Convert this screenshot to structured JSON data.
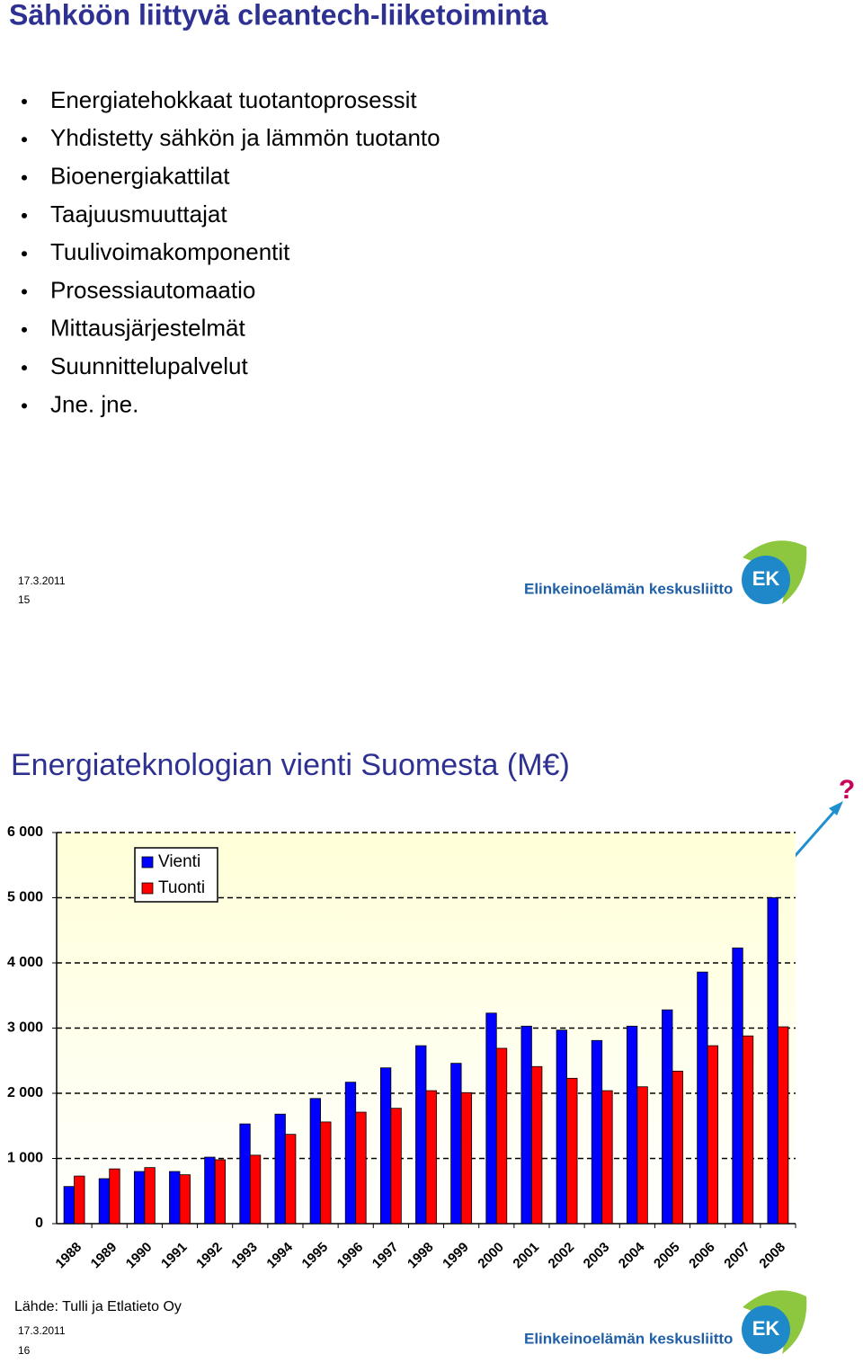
{
  "slide1": {
    "title": "Sähköön liittyvä cleantech-liiketoiminta",
    "bullets": [
      "Energiatehokkaat tuotantoprosessit",
      "Yhdistetty sähkön ja lämmön tuotanto",
      "Bioenergiakattilat",
      "Taajuusmuuttajat",
      "Tuulivoimakomponentit",
      "Prosessiautomaatio",
      "Mittausjärjestelmät",
      "Suunnittelupalvelut",
      "Jne. jne."
    ],
    "date": "17.3.2011",
    "page": "15",
    "logo_text": "Elinkeinoelämän keskusliitto",
    "logo_mark": "EK"
  },
  "slide2": {
    "title": "Energiateknologian vienti Suomesta (M€)",
    "annotation": "?",
    "source": "Lähde: Tulli ja Etlatieto Oy",
    "date": "17.3.2011",
    "page": "16",
    "logo_text": "Elinkeinoelämän keskusliitto",
    "logo_mark": "EK"
  },
  "chart_data": {
    "type": "bar",
    "categories": [
      "1988",
      "1989",
      "1990",
      "1991",
      "1992",
      "1993",
      "1994",
      "1995",
      "1996",
      "1997",
      "1998",
      "1999",
      "2000",
      "2001",
      "2002",
      "2003",
      "2004",
      "2005",
      "2006",
      "2007",
      "2008"
    ],
    "series": [
      {
        "name": "Vienti",
        "color": "#0000ff",
        "values": [
          570,
          690,
          800,
          800,
          1020,
          1530,
          1680,
          1920,
          2170,
          2390,
          2730,
          2460,
          3230,
          3030,
          2970,
          2810,
          3030,
          3280,
          3860,
          4230,
          5000
        ]
      },
      {
        "name": "Tuonti",
        "color": "#ff0000",
        "values": [
          730,
          840,
          860,
          750,
          980,
          1050,
          1370,
          1560,
          1710,
          1770,
          2040,
          2010,
          2690,
          2410,
          2230,
          2040,
          2100,
          2340,
          2730,
          2880,
          3020
        ]
      }
    ],
    "ylim": [
      0,
      6000
    ],
    "yticks": [
      0,
      {
        "value": 1000,
        "label": "1 000"
      },
      {
        "value": 2000,
        "label": "2 000"
      },
      {
        "value": 3000,
        "label": "3 000"
      },
      {
        "value": 4000,
        "label": "4 000"
      },
      {
        "value": 5000,
        "label": "5 000"
      },
      {
        "value": 6000,
        "label": "6 000"
      }
    ],
    "grid": true,
    "legend": "top-left"
  }
}
